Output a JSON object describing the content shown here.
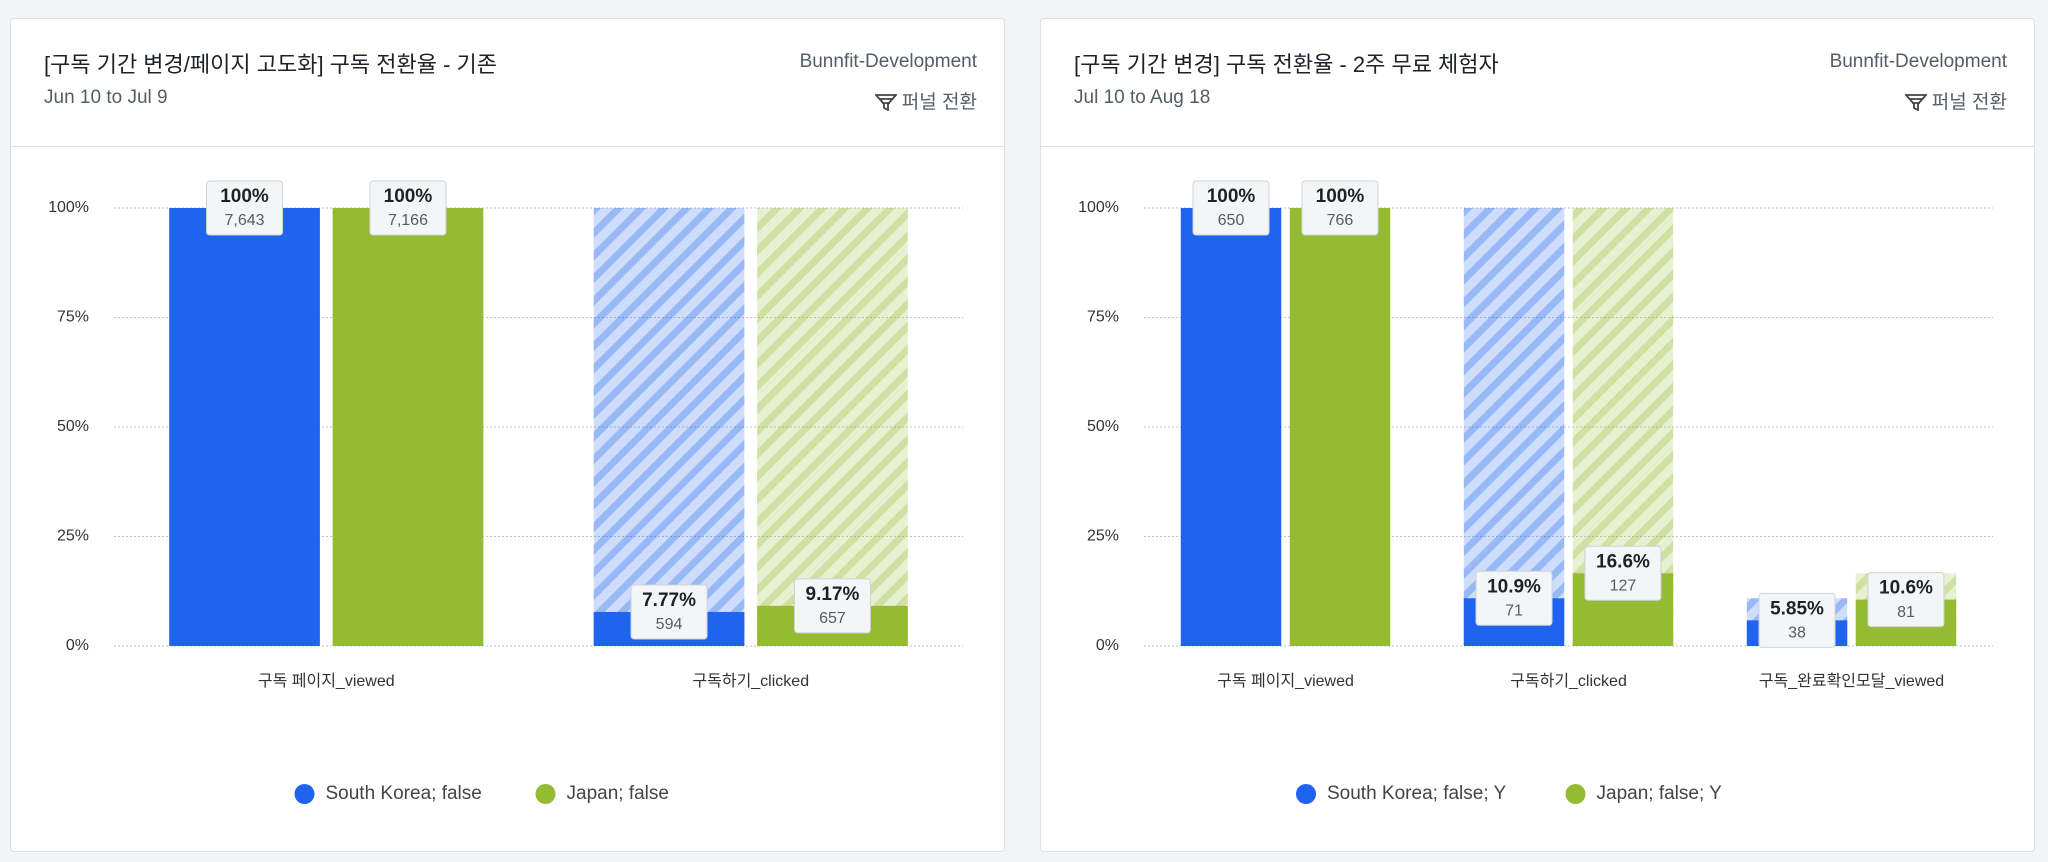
{
  "chart_data": [
    {
      "type": "funnel",
      "title": "[구독 기간 변경/페이지 고도화] 구독 전환율 - 기존",
      "subtitle": "Jun 10 to Jul 9",
      "project": "Bunnfit-Development",
      "mode": "퍼널 전환",
      "categories": [
        "구독 페이지_viewed",
        "구독하기_clicked"
      ],
      "ylim": [
        0,
        100
      ],
      "yticks": [
        {
          "value": 0,
          "label": "0%"
        },
        {
          "value": 25,
          "label": "25%"
        },
        {
          "value": 50,
          "label": "50%"
        },
        {
          "value": 75,
          "label": "75%"
        },
        {
          "value": 100,
          "label": "100%"
        }
      ],
      "grid": true,
      "series": [
        {
          "name": "South Korea; false",
          "color": "#1f63ee",
          "values": [
            100,
            7.77
          ],
          "value_labels": [
            "100%",
            "7.77%"
          ],
          "counts": [
            7643,
            594
          ],
          "count_labels": [
            "7,643",
            "594"
          ]
        },
        {
          "name": "Japan; false",
          "color": "#95bb33",
          "values": [
            100,
            9.17
          ],
          "value_labels": [
            "100%",
            "9.17%"
          ],
          "counts": [
            7166,
            657
          ],
          "count_labels": [
            "7,166",
            "657"
          ]
        }
      ]
    },
    {
      "type": "funnel",
      "title": "[구독 기간 변경] 구독 전환율 - 2주 무료 체험자",
      "subtitle": "Jul 10 to Aug 18",
      "project": "Bunnfit-Development",
      "mode": "퍼널 전환",
      "categories": [
        "구독 페이지_viewed",
        "구독하기_clicked",
        "구독_완료확인모달_viewed"
      ],
      "ylim": [
        0,
        100
      ],
      "yticks": [
        {
          "value": 0,
          "label": "0%"
        },
        {
          "value": 25,
          "label": "25%"
        },
        {
          "value": 50,
          "label": "50%"
        },
        {
          "value": 75,
          "label": "75%"
        },
        {
          "value": 100,
          "label": "100%"
        }
      ],
      "grid": true,
      "series": [
        {
          "name": "South Korea; false; Y",
          "color": "#1f63ee",
          "values": [
            100,
            10.9,
            5.85
          ],
          "value_labels": [
            "100%",
            "10.9%",
            "5.85%"
          ],
          "counts": [
            650,
            71,
            38
          ],
          "count_labels": [
            "650",
            "71",
            "38"
          ]
        },
        {
          "name": "Japan; false; Y",
          "color": "#95bb33",
          "values": [
            100,
            16.6,
            10.6
          ],
          "value_labels": [
            "100%",
            "16.6%",
            "10.6%"
          ],
          "counts": [
            766,
            127,
            81
          ],
          "count_labels": [
            "766",
            "127",
            "81"
          ]
        }
      ]
    }
  ]
}
